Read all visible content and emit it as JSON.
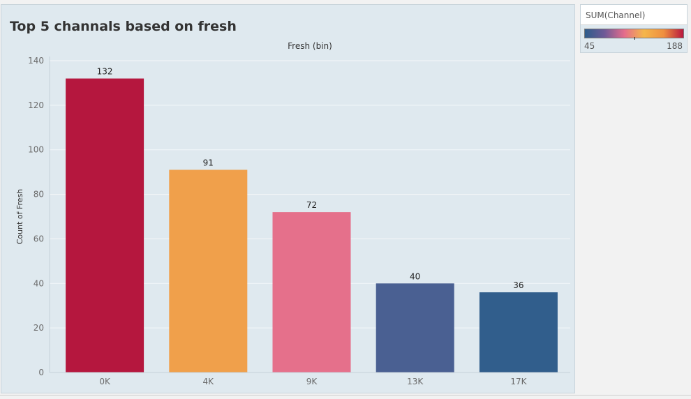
{
  "chart_data": {
    "type": "bar",
    "title": "Top 5 channals based on fresh",
    "column_header": "Fresh (bin)",
    "ylabel": "Count of Fresh",
    "xlabel": "",
    "categories": [
      "0K",
      "4K",
      "9K",
      "13K",
      "17K"
    ],
    "values": [
      132,
      91,
      72,
      40,
      36
    ],
    "bar_colors": [
      "#b5173e",
      "#f0a04b",
      "#e5708b",
      "#4a6092",
      "#315e8c"
    ],
    "ylim": [
      0,
      140
    ],
    "yticks": [
      0,
      20,
      40,
      60,
      80,
      100,
      120,
      140
    ],
    "grid": true,
    "legend": {
      "title": "SUM(Channel)",
      "min": "45",
      "max": "188",
      "gradient": [
        "#2d5c8a",
        "#6f5a97",
        "#e46c8c",
        "#f5b64a",
        "#ef8f3f",
        "#b8173f"
      ],
      "marker_fraction": 0.5
    }
  }
}
